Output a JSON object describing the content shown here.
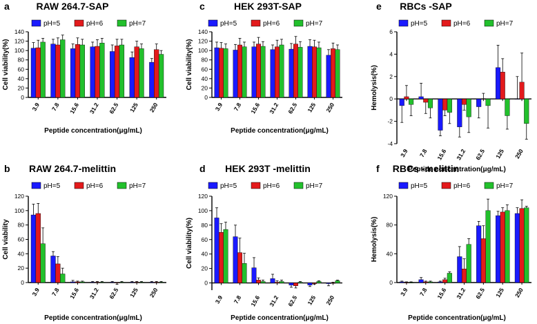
{
  "colors": {
    "pH5": "#1a1aff",
    "pH6": "#e31a1c",
    "pH7": "#22c02c",
    "axis": "#000000"
  },
  "chart_data": [
    {
      "panel": "a",
      "type": "bar",
      "title": "RAW 264.7-SAP",
      "xlabel": "Peptide concentration(μg/mL)",
      "ylabel": "Cell viability(%)",
      "ylim": [
        0,
        140
      ],
      "yticks": [
        0,
        20,
        40,
        60,
        80,
        100,
        120,
        140
      ],
      "categories": [
        "3.9",
        "7.8",
        "15.6",
        "31.2",
        "62.5",
        "125",
        "250"
      ],
      "series": [
        {
          "name": "pH=5",
          "values": [
            105,
            114,
            104,
            108,
            98,
            85,
            75
          ],
          "errors": [
            12,
            10,
            10,
            10,
            14,
            12,
            8
          ]
        },
        {
          "name": "pH=6",
          "values": [
            106,
            112,
            113,
            109,
            110,
            108,
            102
          ],
          "errors": [
            16,
            15,
            14,
            14,
            14,
            12,
            12
          ]
        },
        {
          "name": "pH=7",
          "values": [
            118,
            123,
            112,
            116,
            112,
            104,
            92
          ],
          "errors": [
            8,
            10,
            12,
            10,
            12,
            10,
            8
          ]
        }
      ]
    },
    {
      "panel": "c",
      "type": "bar",
      "title": "HEK 293T-SAP",
      "xlabel": "Peptide concentration(μg/mL)",
      "ylabel": "Cell viability(%)",
      "ylim": [
        0,
        140
      ],
      "yticks": [
        0,
        20,
        40,
        60,
        80,
        100,
        120,
        140
      ],
      "categories": [
        "3.9",
        "7.8",
        "15.6",
        "31.2",
        "62.5",
        "125",
        "250"
      ],
      "series": [
        {
          "name": "pH=5",
          "values": [
            106,
            101,
            108,
            102,
            103,
            109,
            90
          ],
          "errors": [
            12,
            12,
            10,
            10,
            12,
            14,
            12
          ]
        },
        {
          "name": "pH=6",
          "values": [
            105,
            112,
            114,
            108,
            114,
            108,
            104
          ],
          "errors": [
            12,
            14,
            14,
            14,
            16,
            14,
            12
          ]
        },
        {
          "name": "pH=7",
          "values": [
            104,
            108,
            109,
            112,
            107,
            106,
            102
          ],
          "errors": [
            10,
            10,
            10,
            12,
            12,
            12,
            10
          ]
        }
      ]
    },
    {
      "panel": "e",
      "type": "bar",
      "title": "RBCs -SAP",
      "xlabel": "Peptide concentration(μg/mL)",
      "ylabel": "Hemolysis(%)",
      "ylim": [
        -4,
        6
      ],
      "yticks": [
        -4,
        -2,
        0,
        2,
        4,
        6
      ],
      "categories": [
        "3.9",
        "7.8",
        "15.6",
        "31.2",
        "62.5",
        "125",
        "250"
      ],
      "series": [
        {
          "name": "pH=5",
          "values": [
            -0.6,
            0.2,
            -2.8,
            -2.5,
            -0.7,
            2.8,
            0
          ],
          "errors": [
            1.5,
            1.2,
            0.5,
            0.9,
            1.0,
            2.0,
            2.0
          ]
        },
        {
          "name": "pH=6",
          "values": [
            0.2,
            -0.3,
            -1.0,
            -0.5,
            0,
            2.4,
            1.5
          ],
          "errors": [
            1.0,
            1.0,
            0.5,
            0.5,
            0.5,
            1.2,
            2.6
          ]
        },
        {
          "name": "pH=7",
          "values": [
            -0.5,
            -0.8,
            -1.2,
            -1.6,
            -0.6,
            -1.5,
            -2.2
          ],
          "errors": [
            1.0,
            0.9,
            1.0,
            1.4,
            2.0,
            1.2,
            1.4
          ]
        }
      ]
    },
    {
      "panel": "b",
      "type": "bar",
      "title": "RAW 264.7-melittin",
      "xlabel": "Peptide concentration(μg/mL)",
      "ylabel": "Cell viability",
      "ylim": [
        0,
        120
      ],
      "yticks": [
        0,
        20,
        40,
        60,
        80,
        100,
        120
      ],
      "categories": [
        "3.9",
        "7.8",
        "15.6",
        "31.2",
        "62.5",
        "125",
        "250"
      ],
      "series": [
        {
          "name": "pH=5",
          "values": [
            94,
            37,
            1,
            0.5,
            0.5,
            0.5,
            0.5
          ],
          "errors": [
            15,
            6,
            2,
            1,
            1,
            1,
            1
          ]
        },
        {
          "name": "pH=6",
          "values": [
            96,
            26,
            1,
            0.5,
            -0.5,
            0.5,
            0.5
          ],
          "errors": [
            14,
            10,
            1,
            1,
            2,
            1,
            1
          ]
        },
        {
          "name": "pH=7",
          "values": [
            54,
            12,
            1,
            0.5,
            0.5,
            0.5,
            0.5
          ],
          "errors": [
            22,
            8,
            1,
            1,
            1,
            1,
            1
          ]
        }
      ]
    },
    {
      "panel": "d",
      "type": "bar",
      "title": "HEK 293T -melittin",
      "xlabel": "Peptide concentration(μg/mL)",
      "ylabel": "Cell viability(%)",
      "ylim": [
        -10,
        120
      ],
      "yticks": [
        0,
        20,
        40,
        60,
        80,
        100,
        120
      ],
      "categories": [
        "3.9",
        "7.8",
        "15.6",
        "31.2",
        "62.5",
        "125",
        "250"
      ],
      "series": [
        {
          "name": "pH=5",
          "values": [
            90,
            64,
            21,
            6,
            -3,
            -3,
            -1
          ],
          "errors": [
            14,
            16,
            14,
            6,
            3,
            2,
            3
          ]
        },
        {
          "name": "pH=6",
          "values": [
            70,
            42,
            4,
            1,
            -4,
            -1,
            0
          ],
          "errors": [
            12,
            20,
            3,
            2,
            3,
            1,
            1
          ]
        },
        {
          "name": "pH=7",
          "values": [
            74,
            27,
            2,
            2,
            1,
            2,
            3
          ],
          "errors": [
            10,
            14,
            2,
            2,
            1,
            1,
            1
          ]
        }
      ]
    },
    {
      "panel": "f",
      "type": "bar",
      "title": "RBCs -melittin",
      "xlabel": "Peptide concentration(μg/mL)",
      "ylabel": "Hemolysis(%)",
      "ylim": [
        0,
        120
      ],
      "yticks": [
        0,
        40,
        80,
        120
      ],
      "categories": [
        "3.9",
        "7.8",
        "15.6",
        "31.2",
        "62.5",
        "125",
        "250"
      ],
      "series": [
        {
          "name": "pH=5",
          "values": [
            1,
            4,
            1,
            36,
            79,
            93,
            96
          ],
          "errors": [
            1,
            3,
            1,
            14,
            6,
            6,
            8
          ]
        },
        {
          "name": "pH=6",
          "values": [
            0,
            1,
            4,
            19,
            61,
            98,
            103
          ],
          "errors": [
            1,
            1,
            2,
            14,
            18,
            6,
            12
          ]
        },
        {
          "name": "pH=7",
          "values": [
            0,
            1,
            13,
            53,
            100,
            100,
            104
          ],
          "errors": [
            1,
            1,
            2,
            8,
            16,
            8,
            2
          ]
        }
      ]
    }
  ]
}
